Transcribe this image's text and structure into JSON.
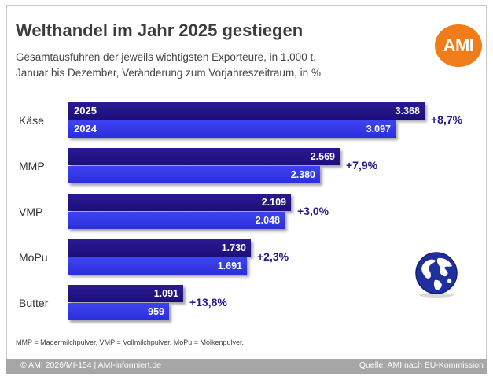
{
  "header": {
    "title": "Welthandel im Jahr 2025 gestiegen",
    "subtitle_line1": "Gesamtausfuhren der jeweils wichtigsten Exporteure, in 1.000 t,",
    "subtitle_line2": "Januar bis Dezember, Veränderung zum Vorjahreszeitraum, in %"
  },
  "logo": {
    "text": "AMI",
    "color": "#f07d19"
  },
  "colors": {
    "y2025": "#1c0f7a",
    "y2024": "#2b2fd9",
    "change_text": "#1f1a86",
    "footer_bg": "#a6a6a6"
  },
  "chart_data": {
    "type": "bar",
    "orientation": "horizontal",
    "categories": [
      "Käse",
      "MMP",
      "VMP",
      "MoPu",
      "Butter"
    ],
    "series": [
      {
        "name": "2025",
        "values": [
          3368,
          2569,
          2109,
          1730,
          1091
        ],
        "labels": [
          "3.368",
          "2.569",
          "2.109",
          "1.730",
          "1.091"
        ]
      },
      {
        "name": "2024",
        "values": [
          3097,
          2380,
          2048,
          1691,
          959
        ],
        "labels": [
          "3.097",
          "2.380",
          "2.048",
          "1.691",
          "959"
        ]
      }
    ],
    "changes": [
      "+8,7%",
      "+7,9%",
      "+3,0%",
      "+2,3%",
      "+13,8%"
    ],
    "legend": "inside-first-bars"
  },
  "footnote": "MMP = Magermilchpulver, VMP = Vollmilchpulver, MoPu = Molkenpulver.",
  "footer": {
    "left": "© AMI 2026/MI-154 | AMI-informiert.de",
    "right": "Quelle: AMI nach EU-Kommission"
  },
  "icons": {
    "globe": "globe-icon"
  }
}
